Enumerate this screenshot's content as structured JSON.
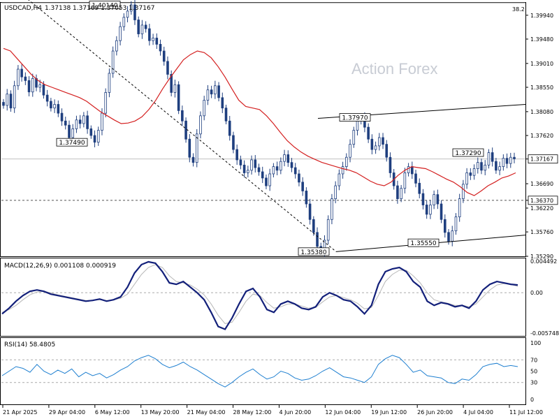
{
  "chart_data": [
    {
      "type": "candlestick",
      "title": "USDCAD,H4",
      "ohlc_label": "1.37138 1.37169 1.37053 1.37167",
      "watermark": "Action Forex",
      "corner_value": "38.2",
      "ylim": [
        1.3529,
        1.4018
      ],
      "y_ticks": [
        "1.39940",
        "1.39480",
        "1.39010",
        "1.38550",
        "1.38080",
        "1.37620",
        "1.37167",
        "1.36690",
        "1.36370",
        "1.36220",
        "1.35760",
        "1.35290"
      ],
      "current_price": "1.37167",
      "support_level": "1.36370",
      "x_ticks": [
        "21 Apr 2025",
        "29 Apr 04:00",
        "6 May 12:00",
        "13 May 20:00",
        "21 May 04:00",
        "28 May 12:00",
        "4 Jun 20:00",
        "12 Jun 04:00",
        "19 Jun 12:00",
        "26 Jun 20:00",
        "4 Jul 04:00",
        "11 Jul 12:00"
      ],
      "annotations": [
        "1.40140",
        "1.37490",
        "1.37970",
        "1.37290",
        "1.35380",
        "1.35550"
      ],
      "close_series": [
        1.382,
        1.3842,
        1.3815,
        1.3858,
        1.389,
        1.3875,
        1.3868,
        1.3846,
        1.3872,
        1.3855,
        1.386,
        1.384,
        1.3828,
        1.3815,
        1.3822,
        1.3805,
        1.379,
        1.3782,
        1.3758,
        1.3775,
        1.3792,
        1.3785,
        1.38,
        1.3775,
        1.3762,
        1.3749,
        1.3772,
        1.3805,
        1.3845,
        1.3882,
        1.3925,
        1.3945,
        1.3972,
        1.399,
        1.4002,
        1.4014,
        1.3985,
        1.3958,
        1.3975,
        1.3968,
        1.3945,
        1.395,
        1.3938,
        1.3925,
        1.3905,
        1.388,
        1.3845,
        1.386,
        1.381,
        1.379,
        1.3755,
        1.372,
        1.371,
        1.3765,
        1.38,
        1.383,
        1.385,
        1.3842,
        1.3858,
        1.3835,
        1.3815,
        1.379,
        1.3762,
        1.3735,
        1.3715,
        1.3705,
        1.369,
        1.3695,
        1.3715,
        1.37,
        1.3692,
        1.368,
        1.3665,
        1.3688,
        1.3702,
        1.3695,
        1.3712,
        1.3725,
        1.371,
        1.37,
        1.3688,
        1.3672,
        1.3655,
        1.363,
        1.36,
        1.3575,
        1.3548,
        1.3538,
        1.356,
        1.36,
        1.364,
        1.3665,
        1.3688,
        1.3702,
        1.372,
        1.3745,
        1.3772,
        1.379,
        1.3797,
        1.3778,
        1.3755,
        1.3735,
        1.3742,
        1.3758,
        1.3745,
        1.372,
        1.369,
        1.3665,
        1.364,
        1.366,
        1.369,
        1.3702,
        1.3688,
        1.367,
        1.365,
        1.3628,
        1.361,
        1.3628,
        1.3648,
        1.363,
        1.36,
        1.3575,
        1.3558,
        1.3578,
        1.3605,
        1.364,
        1.3668,
        1.369,
        1.3685,
        1.3698,
        1.371,
        1.3695,
        1.3705,
        1.3729,
        1.3712,
        1.3695,
        1.3702,
        1.3718,
        1.3708,
        1.372,
        1.3717
      ],
      "ma_series": [
        1.393,
        1.3925,
        1.391,
        1.3895,
        1.388,
        1.3868,
        1.386,
        1.3855,
        1.385,
        1.3845,
        1.384,
        1.3835,
        1.3828,
        1.3818,
        1.3808,
        1.38,
        1.3792,
        1.3785,
        1.3786,
        1.379,
        1.3798,
        1.3812,
        1.383,
        1.3852,
        1.3872,
        1.389,
        1.3908,
        1.3918,
        1.3925,
        1.3922,
        1.3912,
        1.3895,
        1.3875,
        1.3852,
        1.383,
        1.3818,
        1.3815,
        1.3812,
        1.38,
        1.3785,
        1.3768,
        1.3752,
        1.374,
        1.373,
        1.3722,
        1.3716,
        1.371,
        1.3706,
        1.3702,
        1.3698,
        1.3695,
        1.369,
        1.3682,
        1.3674,
        1.3668,
        1.3665,
        1.3672,
        1.3685,
        1.3695,
        1.3702,
        1.37,
        1.3698,
        1.3692,
        1.3685,
        1.3678,
        1.3672,
        1.3663,
        1.3652,
        1.3646,
        1.3655,
        1.3665,
        1.3672,
        1.368,
        1.3684,
        1.369
      ],
      "resistance_line": {
        "x": [
          "13 Jun",
          "14 Jul"
        ],
        "y": [
          1.3795,
          1.3822
        ]
      },
      "support_line": {
        "x": [
          "12 Jun",
          "14 Jul"
        ],
        "y": [
          1.3538,
          1.357
        ]
      },
      "downtrend_line": {
        "x": [
          "21 Apr",
          "12 Jun"
        ],
        "y": [
          1.403,
          1.3538
        ]
      }
    },
    {
      "type": "line",
      "title": "MACD(12,26,9) 0.001108 0.000919",
      "y_ticks": [
        "0.004492",
        "0.00",
        "-0.005748"
      ],
      "ylim": [
        -0.005748,
        0.004492
      ],
      "macd": [
        -0.003,
        -0.0022,
        -0.0012,
        -0.0004,
        0.0002,
        0.0004,
        0.0002,
        -0.0002,
        -0.0004,
        -0.0006,
        -0.0008,
        -0.001,
        -0.0012,
        -0.0011,
        -0.0009,
        -0.0012,
        -0.001,
        -0.0006,
        0.0008,
        0.0028,
        0.004,
        0.0044,
        0.0042,
        0.003,
        0.0014,
        0.0012,
        0.0016,
        0.0008,
        0.0,
        -0.001,
        -0.0028,
        -0.0048,
        -0.0052,
        -0.0036,
        -0.0016,
        0.0002,
        0.0006,
        -0.0006,
        -0.0024,
        -0.0028,
        -0.0016,
        -0.0012,
        -0.0016,
        -0.0022,
        -0.0024,
        -0.002,
        -0.0006,
        0.0,
        -0.0004,
        -0.001,
        -0.0012,
        -0.002,
        -0.003,
        -0.0018,
        0.0012,
        0.003,
        0.0034,
        0.0036,
        0.003,
        0.0016,
        0.0008,
        -0.0012,
        -0.0018,
        -0.0014,
        -0.0016,
        -0.002,
        -0.0018,
        -0.0022,
        -0.0012,
        0.0004,
        0.0012,
        0.0016,
        0.0014,
        0.0012,
        0.0011
      ],
      "signal": [
        -0.0028,
        -0.0024,
        -0.0018,
        -0.001,
        -0.0003,
        0.0001,
        0.0002,
        0.0,
        -0.0003,
        -0.0005,
        -0.0007,
        -0.0009,
        -0.0011,
        -0.0011,
        -0.001,
        -0.0011,
        -0.001,
        -0.0008,
        -0.0002,
        0.0012,
        0.0026,
        0.0036,
        0.004,
        0.0036,
        0.0024,
        0.0016,
        0.0014,
        0.0011,
        0.0005,
        -0.0003,
        -0.0016,
        -0.0032,
        -0.0044,
        -0.0042,
        -0.0028,
        -0.0012,
        -0.0002,
        -0.0004,
        -0.0014,
        -0.0022,
        -0.002,
        -0.0016,
        -0.0016,
        -0.0019,
        -0.0022,
        -0.0021,
        -0.0013,
        -0.0006,
        -0.0004,
        -0.0007,
        -0.001,
        -0.0015,
        -0.0023,
        -0.0021,
        -0.0004,
        0.0016,
        0.0026,
        0.0032,
        0.0032,
        0.0024,
        0.0014,
        0.0,
        -0.001,
        -0.0013,
        -0.0015,
        -0.0018,
        -0.0018,
        -0.002,
        -0.0016,
        -0.0006,
        0.0004,
        0.0011,
        0.0013,
        0.0012,
        0.0009
      ]
    },
    {
      "type": "line",
      "title": "RSI(14) 58.4805",
      "y_ticks": [
        "100",
        "70",
        "50",
        "30",
        "0"
      ],
      "ylim": [
        0,
        100
      ],
      "levels": [
        70,
        30
      ],
      "values": [
        42,
        50,
        58,
        55,
        48,
        62,
        50,
        44,
        52,
        46,
        54,
        40,
        48,
        42,
        46,
        38,
        44,
        52,
        58,
        68,
        74,
        78,
        72,
        62,
        56,
        60,
        66,
        58,
        52,
        44,
        36,
        28,
        22,
        30,
        40,
        48,
        54,
        44,
        36,
        40,
        50,
        46,
        38,
        34,
        36,
        42,
        50,
        56,
        48,
        40,
        38,
        34,
        30,
        40,
        62,
        72,
        78,
        74,
        62,
        48,
        52,
        42,
        40,
        38,
        30,
        28,
        36,
        34,
        44,
        58,
        62,
        64,
        58,
        60,
        58
      ]
    }
  ]
}
